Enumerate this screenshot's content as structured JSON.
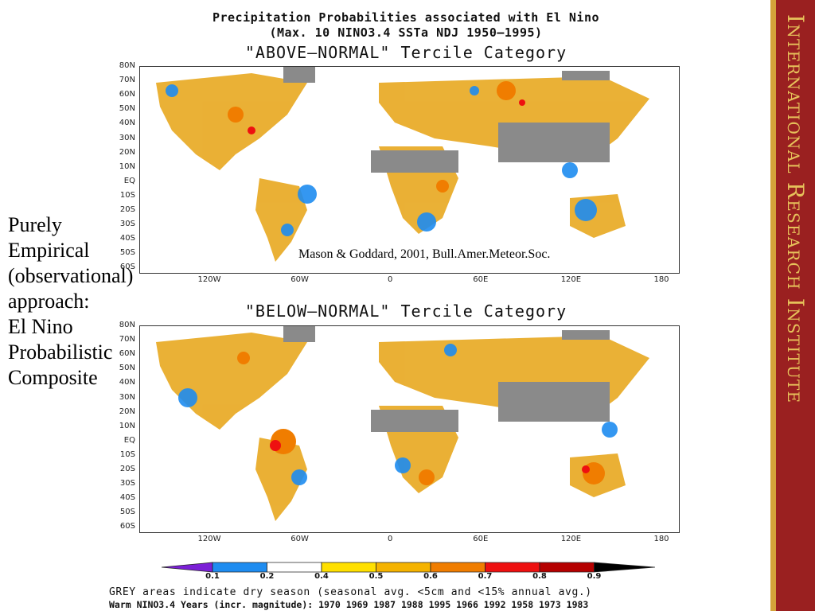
{
  "title": {
    "line1": "Precipitation Probabilities associated with El Nino",
    "line2": "(Max. 10 NINO3.4 SSTa NDJ 1950—1995)"
  },
  "panels": [
    {
      "category_label": "\"ABOVE—NORMAL\" Tercile Category"
    },
    {
      "category_label": "\"BELOW—NORMAL\" Tercile Category"
    }
  ],
  "lat_labels": [
    "80N",
    "70N",
    "60N",
    "50N",
    "40N",
    "30N",
    "20N",
    "10N",
    "EQ",
    "10S",
    "20S",
    "30S",
    "40S",
    "50S",
    "60S"
  ],
  "lon_labels": [
    "120W",
    "60W",
    "0",
    "60E",
    "120E",
    "180"
  ],
  "side_text": [
    "Purely",
    "Empirical",
    "(observational)",
    "approach:",
    "El Nino",
    "Probabilistic",
    "Composite"
  ],
  "citation": "Mason & Goddard, 2001, Bull.Amer.Meteor.Soc.",
  "colorbar": {
    "ticks": [
      "0.1",
      "0.2",
      "0.4",
      "0.5",
      "0.6",
      "0.7",
      "0.8",
      "0.9"
    ],
    "colors": [
      "#7b1fd6",
      "#1e8cf0",
      "#ffffff",
      "#ffe000",
      "#f5b300",
      "#f07d00",
      "#ee1010",
      "#b50000",
      "#000000"
    ]
  },
  "notes": {
    "grey": "GREY areas indicate dry season (seasonal avg. <5cm and <15% annual avg.)",
    "years": "Warm NINO3.4 Years (incr. magnitude): 1970 1969 1987 1988 1995 1966 1992 1958 1973 1983"
  },
  "sidebar_brand": "International Research Institute"
}
